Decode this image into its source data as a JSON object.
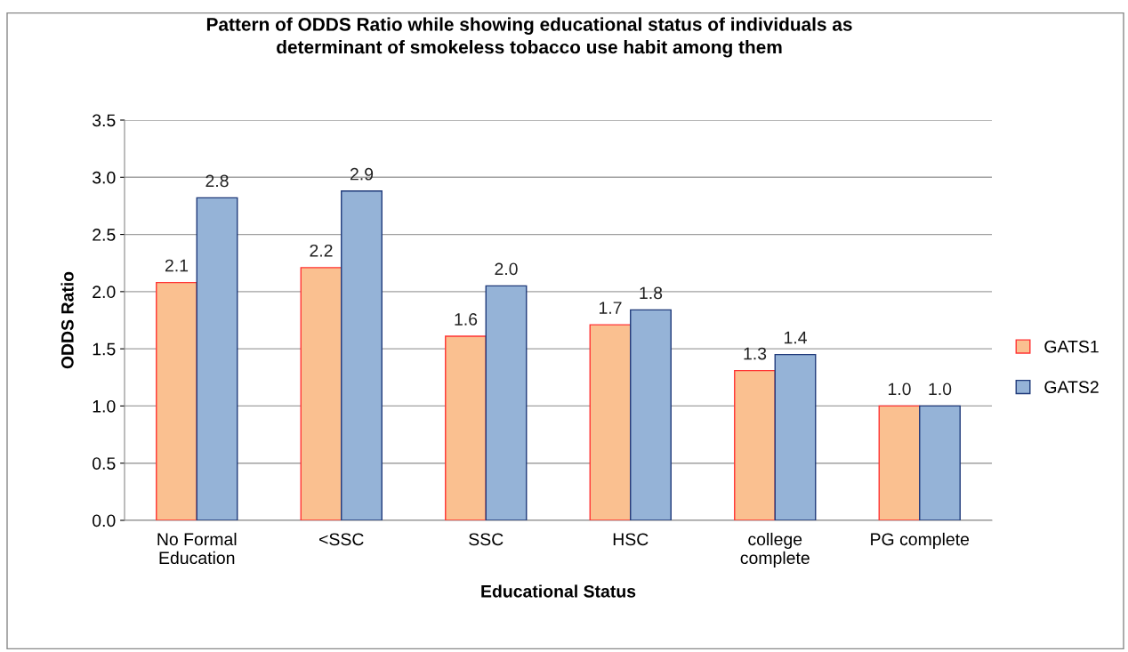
{
  "chart_data": {
    "type": "bar",
    "title": "Pattern of ODDS Ratio while showing educational status of individuals as\ndeterminant of smokeless tobacco use habit among them",
    "xlabel": "Educational Status",
    "ylabel": "ODDS Ratio",
    "categories": [
      "No Formal\nEducation",
      "<SSC",
      "SSC",
      "HSC",
      "college\ncomplete",
      "PG complete"
    ],
    "series": [
      {
        "name": "GATS1",
        "color": "#fac090",
        "values": [
          2.08,
          2.21,
          1.61,
          1.71,
          1.31,
          1.0
        ],
        "value_labels": [
          "2.1",
          "2.2",
          "1.6",
          "1.7",
          "1.3",
          "1.0"
        ]
      },
      {
        "name": "GATS2",
        "color": "#95b3d7",
        "values": [
          2.82,
          2.88,
          2.05,
          1.84,
          1.45,
          1.0
        ],
        "value_labels": [
          "2.8",
          "2.9",
          "2.0",
          "1.8",
          "1.4",
          "1.0"
        ]
      }
    ],
    "ylim": [
      0,
      3.5
    ],
    "yticks": [
      {
        "value": 0,
        "label": "0.0"
      },
      {
        "value": 0.5,
        "label": "0.5"
      },
      {
        "value": 1,
        "label": "1.0"
      },
      {
        "value": 1.5,
        "label": "1.5"
      },
      {
        "value": 2,
        "label": "2.0"
      },
      {
        "value": 2.5,
        "label": "2.5"
      },
      {
        "value": 3,
        "label": "3.0"
      },
      {
        "value": 3.5,
        "label": "3.5"
      }
    ],
    "grid": "y",
    "legend": "right"
  }
}
